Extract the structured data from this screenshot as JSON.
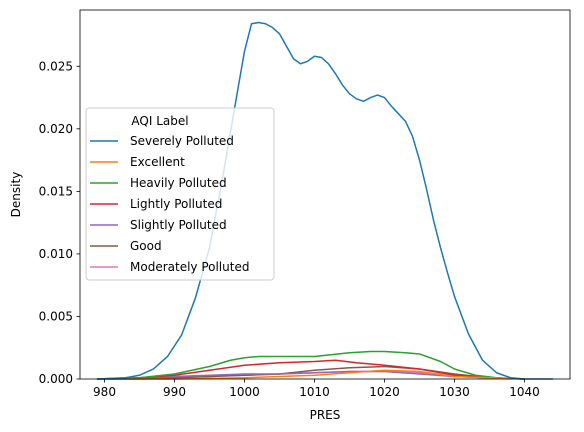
{
  "chart_data": {
    "type": "line",
    "xlabel": "PRES",
    "ylabel": "Density",
    "xlim": [
      976.5,
      1046.5
    ],
    "ylim": [
      0,
      0.0295
    ],
    "xticks": [
      980,
      990,
      1000,
      1010,
      1020,
      1030,
      1040
    ],
    "xtick_labels": [
      "980",
      "990",
      "1000",
      "1010",
      "1020",
      "1030",
      "1040"
    ],
    "yticks": [
      0.0,
      0.005,
      0.01,
      0.015,
      0.02,
      0.025
    ],
    "ytick_labels": [
      "0.000",
      "0.005",
      "0.010",
      "0.015",
      "0.020",
      "0.025"
    ],
    "grid": false,
    "legend": {
      "title": "AQI Label",
      "placement": "center-left"
    },
    "series": [
      {
        "name": "Severely Polluted",
        "color": "#1f77b4",
        "x": [
          979,
          983,
          985,
          987,
          989,
          991,
          993,
          995,
          997,
          999,
          1000,
          1001,
          1002,
          1003,
          1004,
          1005,
          1006,
          1007,
          1008,
          1009,
          1010,
          1011,
          1012,
          1013,
          1014,
          1015,
          1016,
          1017,
          1018,
          1019,
          1020,
          1021,
          1022,
          1023,
          1024,
          1025,
          1026,
          1027,
          1028,
          1029,
          1030,
          1032,
          1034,
          1036,
          1038,
          1040,
          1042,
          1044
        ],
        "y": [
          0.0,
          0.0001,
          0.0003,
          0.0008,
          0.0018,
          0.0035,
          0.0065,
          0.0105,
          0.0165,
          0.023,
          0.0262,
          0.0284,
          0.0285,
          0.0284,
          0.0281,
          0.0276,
          0.0266,
          0.0256,
          0.0252,
          0.0254,
          0.0258,
          0.0257,
          0.0252,
          0.0244,
          0.0235,
          0.0228,
          0.0224,
          0.0222,
          0.0225,
          0.0227,
          0.0225,
          0.0218,
          0.0212,
          0.0206,
          0.0194,
          0.0175,
          0.0152,
          0.0127,
          0.0105,
          0.0085,
          0.0066,
          0.0036,
          0.0015,
          0.0005,
          0.0001,
          0.0,
          0.0,
          0.0
        ]
      },
      {
        "name": "Excellent",
        "color": "#ff7f0e",
        "x": [
          979,
          990,
          1000,
          1005,
          1010,
          1015,
          1020,
          1025,
          1030,
          1035,
          1040
        ],
        "y": [
          0.0,
          0.0,
          0.0001,
          0.0002,
          0.0003,
          0.0005,
          0.0007,
          0.0006,
          0.0002,
          0.0001,
          0.0
        ]
      },
      {
        "name": "Heavily Polluted",
        "color": "#2ca02c",
        "x": [
          979,
          985,
          990,
          995,
          998,
          1000,
          1002,
          1005,
          1010,
          1015,
          1018,
          1020,
          1023,
          1025,
          1028,
          1030,
          1033,
          1036,
          1040
        ],
        "y": [
          0.0,
          0.0001,
          0.0004,
          0.001,
          0.0015,
          0.0017,
          0.0018,
          0.0018,
          0.0018,
          0.0021,
          0.0022,
          0.0022,
          0.0021,
          0.002,
          0.0014,
          0.0008,
          0.0003,
          0.0001,
          0.0
        ]
      },
      {
        "name": "Lightly Polluted",
        "color": "#d62728",
        "x": [
          979,
          985,
          990,
          995,
          1000,
          1005,
          1010,
          1013,
          1016,
          1020,
          1025,
          1030,
          1035,
          1040
        ],
        "y": [
          0.0,
          0.0001,
          0.0003,
          0.0007,
          0.0011,
          0.0013,
          0.0014,
          0.0015,
          0.0013,
          0.0011,
          0.0008,
          0.0003,
          0.0001,
          0.0
        ]
      },
      {
        "name": "Slightly Polluted",
        "color": "#9467bd",
        "x": [
          979,
          985,
          990,
          995,
          1000,
          1005,
          1010,
          1015,
          1020,
          1025,
          1030,
          1035,
          1040
        ],
        "y": [
          0.0,
          0.0001,
          0.0002,
          0.0003,
          0.0004,
          0.0004,
          0.0005,
          0.0006,
          0.0006,
          0.0004,
          0.0002,
          0.0001,
          0.0
        ]
      },
      {
        "name": "Good",
        "color": "#8c564b",
        "x": [
          979,
          985,
          990,
          995,
          1000,
          1005,
          1010,
          1015,
          1020,
          1025,
          1030,
          1035,
          1040
        ],
        "y": [
          0.0,
          0.0,
          0.0001,
          0.0002,
          0.0003,
          0.0004,
          0.0007,
          0.0009,
          0.001,
          0.0008,
          0.0004,
          0.0001,
          0.0
        ]
      },
      {
        "name": "Moderately Polluted",
        "color": "#e377c2",
        "x": [
          979,
          985,
          990,
          995,
          1000,
          1005,
          1010,
          1015,
          1020,
          1025,
          1030,
          1035,
          1040
        ],
        "y": [
          0.0,
          0.0,
          0.0001,
          0.0002,
          0.0003,
          0.0004,
          0.0005,
          0.0006,
          0.0006,
          0.0005,
          0.0002,
          0.0001,
          0.0
        ]
      }
    ]
  }
}
